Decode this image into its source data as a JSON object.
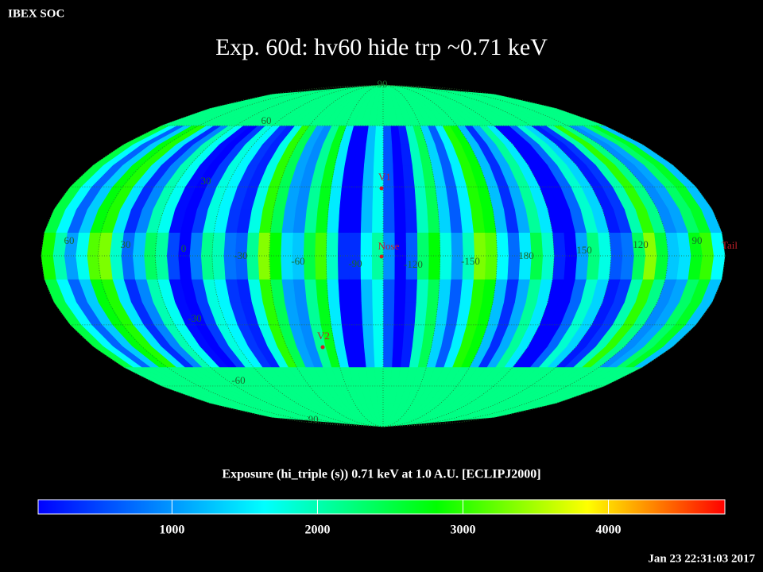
{
  "header": {
    "label": "IBEX SOC",
    "title": "Exp.   60d: hv60 hide trp ~0.71 keV",
    "timestamp": "Jan 23 22:31:03 2017"
  },
  "map": {
    "longitude_labels": [
      "60",
      "30",
      "0",
      "-30",
      "-60",
      "-90",
      "-120",
      "-150",
      "180",
      "150",
      "120",
      "90"
    ],
    "latitude_labels": [
      "90",
      "60",
      "30",
      "-30",
      "-60",
      "-90"
    ],
    "markers": [
      "V1",
      "Nose",
      "V2",
      "Tail"
    ]
  },
  "colorbar": {
    "label": "Exposure (hi_triple (s))  0.71 keV at 1.0 A.U. [ECLIPJ2000]",
    "lim": [
      80,
      4800
    ],
    "ticks": [
      1000,
      2000,
      3000,
      4000
    ]
  }
}
